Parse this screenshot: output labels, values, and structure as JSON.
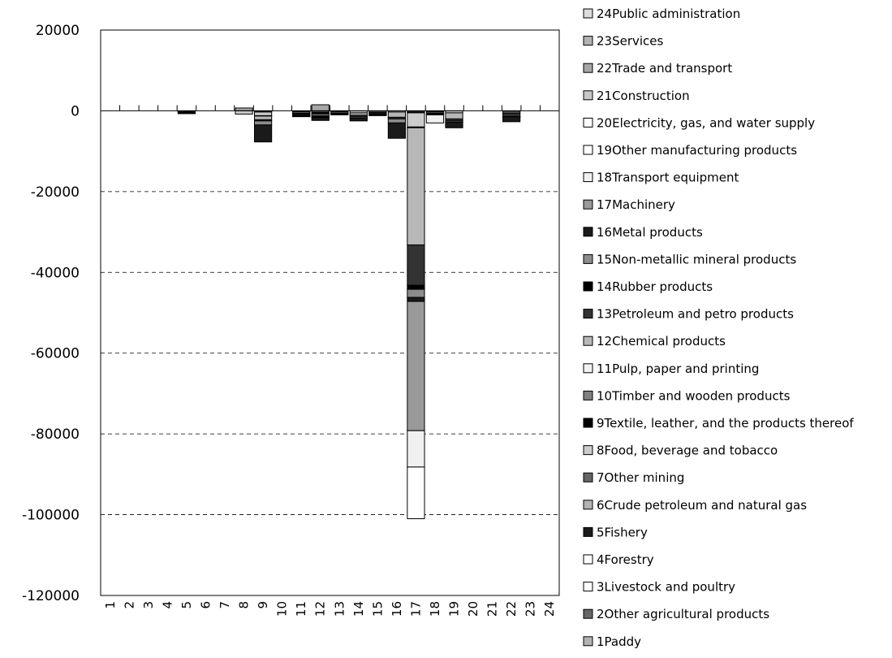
{
  "chart_data": {
    "type": "bar",
    "stacked": true,
    "title": "",
    "xlabel": "",
    "ylabel": "",
    "ylim": [
      -120000,
      20000
    ],
    "yticks": [
      20000,
      0,
      -20000,
      -40000,
      -60000,
      -80000,
      -100000,
      -120000
    ],
    "ytick_labels": [
      "20000",
      "0",
      "-20000",
      "-40000",
      "-60000",
      "-80000",
      "-100000",
      "-120000"
    ],
    "grid": "horizontal dashed",
    "legend_position": "right",
    "categories": [
      "1",
      "2",
      "3",
      "4",
      "5",
      "6",
      "7",
      "8",
      "9",
      "10",
      "11",
      "12",
      "13",
      "14",
      "15",
      "16",
      "17",
      "18",
      "19",
      "20",
      "21",
      "22",
      "23",
      "24"
    ],
    "series": [
      {
        "name": "1Paddy",
        "color": "#b3b3b3",
        "values": [
          0,
          0,
          0,
          0,
          -100,
          0,
          0,
          0,
          -100,
          0,
          -50,
          -80,
          0,
          0,
          0,
          0,
          0,
          0,
          0,
          0,
          0,
          0,
          0,
          0
        ]
      },
      {
        "name": "2Other agricultural products",
        "color": "#666666",
        "values": [
          0,
          0,
          0,
          0,
          -100,
          0,
          0,
          0,
          -200,
          0,
          -100,
          0,
          0,
          0,
          0,
          0,
          -300,
          0,
          0,
          0,
          0,
          0,
          0,
          0
        ]
      },
      {
        "name": "3Livestock and poultry",
        "color": "#ffffff",
        "values": [
          0,
          0,
          0,
          0,
          0,
          0,
          0,
          0,
          0,
          0,
          0,
          0,
          0,
          0,
          0,
          0,
          -200,
          0,
          0,
          0,
          0,
          0,
          0,
          0
        ]
      },
      {
        "name": "4Forestry",
        "color": "#ffffff",
        "values": [
          0,
          0,
          0,
          0,
          0,
          0,
          0,
          0,
          0,
          0,
          0,
          0,
          0,
          0,
          0,
          0,
          0,
          0,
          0,
          0,
          0,
          0,
          0,
          0
        ]
      },
      {
        "name": "5Fishery",
        "color": "#1a1a1a",
        "values": [
          0,
          0,
          0,
          0,
          -300,
          0,
          0,
          0,
          0,
          0,
          -100,
          0,
          0,
          0,
          0,
          0,
          0,
          0,
          0,
          0,
          0,
          0,
          0,
          0
        ]
      },
      {
        "name": "6Crude petroleum and natural gas",
        "color": "#b3b3b3",
        "values": [
          0,
          0,
          0,
          0,
          0,
          0,
          0,
          0,
          0,
          0,
          0,
          0,
          0,
          0,
          0,
          0,
          0,
          0,
          0,
          0,
          0,
          0,
          0,
          0
        ]
      },
      {
        "name": "7Other mining",
        "color": "#666666",
        "values": [
          0,
          0,
          0,
          0,
          0,
          0,
          0,
          0,
          0,
          0,
          0,
          0,
          0,
          0,
          0,
          0,
          0,
          0,
          0,
          0,
          0,
          0,
          0,
          0
        ]
      },
      {
        "name": "8Food, beverage and tobacco",
        "color": "#cccccc",
        "values": [
          0,
          0,
          0,
          0,
          -200,
          0,
          0,
          -800,
          -900,
          0,
          -300,
          -300,
          -200,
          -500,
          -300,
          -300,
          -3500,
          -200,
          -500,
          0,
          0,
          -300,
          0,
          0
        ]
      },
      {
        "name": "9Textile, leather, and the products thereof",
        "color": "#000000",
        "values": [
          0,
          0,
          0,
          0,
          0,
          0,
          0,
          0,
          -100,
          0,
          -100,
          -400,
          0,
          0,
          0,
          0,
          0,
          0,
          0,
          0,
          0,
          0,
          0,
          0
        ]
      },
      {
        "name": "10Timber and wooden products",
        "color": "#808080",
        "values": [
          0,
          0,
          0,
          0,
          0,
          0,
          0,
          0,
          0,
          0,
          0,
          0,
          0,
          0,
          0,
          0,
          0,
          0,
          0,
          0,
          0,
          0,
          0,
          0
        ]
      },
      {
        "name": "11Pulp, paper and printing",
        "color": "#f2f2f2",
        "values": [
          0,
          0,
          0,
          0,
          0,
          0,
          0,
          0,
          0,
          0,
          0,
          0,
          0,
          0,
          0,
          0,
          -200,
          0,
          0,
          0,
          0,
          0,
          0,
          0
        ]
      },
      {
        "name": "12Chemical products",
        "color": "#b8b8b8",
        "values": [
          0,
          0,
          0,
          0,
          0,
          0,
          0,
          0,
          -900,
          0,
          -200,
          -400,
          -300,
          -600,
          -200,
          -1300,
          -29000,
          -300,
          -1500,
          0,
          0,
          -300,
          0,
          0
        ]
      },
      {
        "name": "13Petroleum and petro products",
        "color": "#333333",
        "values": [
          0,
          0,
          0,
          0,
          0,
          0,
          0,
          0,
          -300,
          0,
          -300,
          -300,
          -200,
          -400,
          -300,
          -400,
          -10000,
          -200,
          -500,
          0,
          0,
          -800,
          0,
          0
        ]
      },
      {
        "name": "14Rubber products",
        "color": "#000000",
        "values": [
          0,
          0,
          0,
          0,
          0,
          0,
          0,
          0,
          0,
          0,
          0,
          0,
          0,
          0,
          0,
          0,
          -1000,
          0,
          0,
          0,
          0,
          0,
          0,
          0
        ]
      },
      {
        "name": "15Non-metallic mineral products",
        "color": "#8c8c8c",
        "values": [
          0,
          0,
          0,
          0,
          0,
          0,
          0,
          0,
          -1000,
          0,
          -100,
          -200,
          -100,
          -300,
          -100,
          -1000,
          -2000,
          -100,
          -300,
          0,
          0,
          -100,
          0,
          0
        ]
      },
      {
        "name": "16Metal products",
        "color": "#1a1a1a",
        "values": [
          0,
          0,
          0,
          0,
          0,
          0,
          0,
          0,
          -4200,
          0,
          -200,
          -700,
          -200,
          -700,
          -300,
          -3800,
          -1000,
          -200,
          -1400,
          0,
          0,
          -1200,
          0,
          0
        ]
      },
      {
        "name": "17Machinery",
        "color": "#999999",
        "values": [
          0,
          0,
          0,
          0,
          0,
          0,
          0,
          0,
          0,
          0,
          0,
          0,
          0,
          0,
          0,
          0,
          -32000,
          0,
          0,
          0,
          0,
          0,
          0,
          0
        ]
      },
      {
        "name": "18Transport equipment",
        "color": "#f0f0f0",
        "values": [
          0,
          0,
          0,
          0,
          0,
          0,
          0,
          0,
          0,
          0,
          0,
          0,
          0,
          0,
          0,
          0,
          -9000,
          -2000,
          0,
          0,
          0,
          0,
          0,
          0
        ]
      },
      {
        "name": "19Other manufacturing products",
        "color": "#ffffff",
        "values": [
          0,
          0,
          0,
          0,
          0,
          0,
          0,
          0,
          0,
          0,
          0,
          0,
          0,
          0,
          0,
          0,
          -12800,
          0,
          0,
          0,
          0,
          0,
          0,
          0
        ]
      },
      {
        "name": "20Electricity, gas, and water supply",
        "color": "#ffffff",
        "values": [
          0,
          0,
          0,
          0,
          0,
          0,
          0,
          0,
          0,
          0,
          0,
          0,
          0,
          0,
          0,
          0,
          0,
          0,
          0,
          0,
          0,
          0,
          0,
          0
        ]
      },
      {
        "name": "21Construction",
        "color": "#c8c8c8",
        "values": [
          0,
          0,
          0,
          0,
          0,
          0,
          0,
          0,
          0,
          0,
          0,
          0,
          0,
          0,
          0,
          0,
          0,
          0,
          0,
          0,
          0,
          0,
          0,
          0
        ]
      },
      {
        "name": "22Trade and transport",
        "color": "#a6a6a6",
        "values": [
          0,
          0,
          0,
          0,
          0,
          0,
          0,
          700,
          0,
          0,
          0,
          1500,
          0,
          0,
          0,
          0,
          0,
          0,
          0,
          0,
          0,
          0,
          0,
          0
        ]
      },
      {
        "name": "23Services",
        "color": "#b3b3b3",
        "values": [
          0,
          0,
          0,
          0,
          0,
          0,
          0,
          0,
          0,
          0,
          0,
          0,
          0,
          0,
          0,
          0,
          0,
          0,
          0,
          0,
          0,
          0,
          0,
          0
        ]
      },
      {
        "name": "24Public administration",
        "color": "#dddddd",
        "values": [
          0,
          0,
          0,
          0,
          0,
          0,
          0,
          0,
          0,
          0,
          0,
          0,
          0,
          0,
          0,
          0,
          0,
          0,
          0,
          0,
          0,
          0,
          0,
          0
        ]
      }
    ]
  }
}
